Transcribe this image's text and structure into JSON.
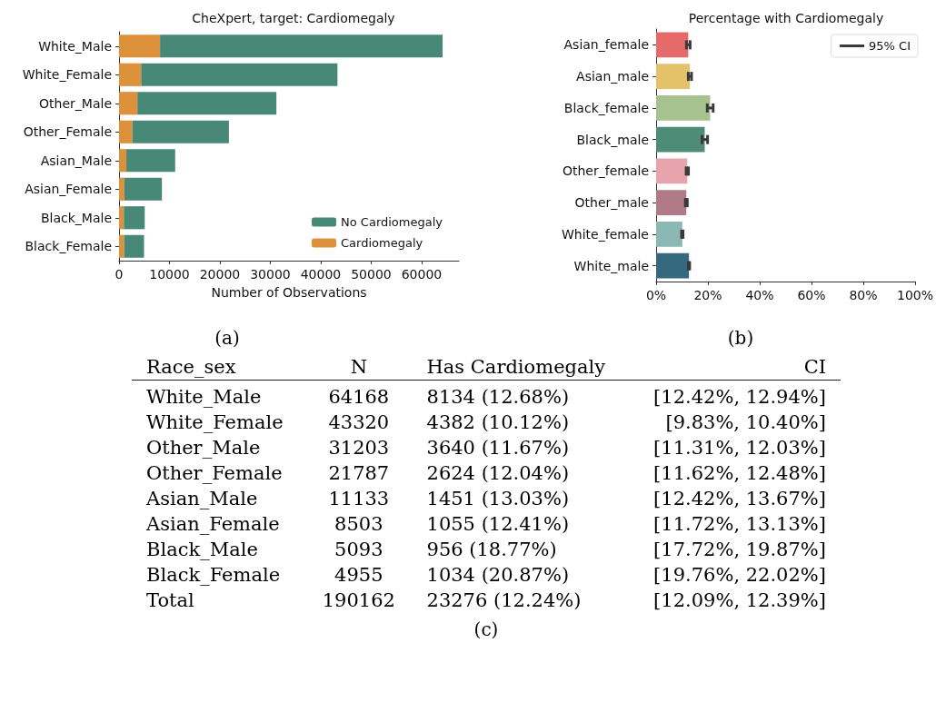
{
  "chart_data": [
    {
      "type": "bar",
      "title": "CheXpert, target: Cardiomegaly",
      "xlabel": "Number of Observations",
      "orientation": "horizontal",
      "stacked": true,
      "legend": "bottom right",
      "grid": false,
      "annotations": [
        "(a)"
      ],
      "categories": [
        "White_Male",
        "White_Female",
        "Other_Male",
        "Other_Female",
        "Asian_Male",
        "Asian_Female",
        "Black_Male",
        "Black_Female"
      ],
      "xlim": [
        0,
        67400
      ],
      "xticks": [
        0,
        10000,
        20000,
        30000,
        40000,
        50000,
        60000
      ],
      "series": [
        {
          "name": "Cardiomegaly",
          "color": "#dd913a",
          "values": [
            8134,
            4382,
            3640,
            2624,
            1451,
            1055,
            956,
            1034
          ]
        },
        {
          "name": "No Cardiomegaly",
          "color": "#478877",
          "values": [
            56034,
            38938,
            27563,
            19163,
            9682,
            7448,
            4137,
            3921
          ]
        }
      ]
    },
    {
      "type": "bar",
      "title": "Percentage with Cardiomegaly",
      "orientation": "horizontal",
      "legend_title": "95% CI",
      "grid": false,
      "annotations": [
        "(b)"
      ],
      "categories": [
        "Asian_female",
        "Asian_male",
        "Black_female",
        "Black_male",
        "Other_female",
        "Other_male",
        "White_female",
        "White_male"
      ],
      "xlim": [
        0,
        100
      ],
      "xticks": [
        {
          "value": 0,
          "label": "0%"
        },
        {
          "value": 20,
          "label": "20%"
        },
        {
          "value": 40,
          "label": "40%"
        },
        {
          "value": 60,
          "label": "60%"
        },
        {
          "value": 80,
          "label": "80%"
        },
        {
          "value": 100,
          "label": "100%"
        }
      ],
      "values": [
        12.41,
        13.03,
        20.87,
        18.77,
        12.04,
        11.67,
        10.12,
        12.68
      ],
      "colors": [
        "#e66a6a",
        "#e4c26a",
        "#a7c18f",
        "#4e8c78",
        "#e7a4ac",
        "#b17a87",
        "#8bb7b5",
        "#366980"
      ],
      "errors": [
        [
          11.72,
          13.13
        ],
        [
          12.42,
          13.67
        ],
        [
          19.76,
          22.02
        ],
        [
          17.72,
          19.87
        ],
        [
          11.62,
          12.48
        ],
        [
          11.31,
          12.03
        ],
        [
          9.83,
          10.4
        ],
        [
          12.42,
          12.94
        ]
      ]
    },
    {
      "type": "other",
      "title": "(c)",
      "annotations": [
        "Race_sex",
        "N",
        "Has Cardiomegaly",
        "CI",
        "White_Male",
        "64168",
        "8134 (12.68%)",
        "[12.42%, 12.94%]",
        "White_Female",
        "43320",
        "4382 (10.12%)",
        "[9.83%, 10.40%]",
        "Other_Male",
        "31203",
        "3640 (11.67%)",
        "[11.31%, 12.03%]",
        "Other_Female",
        "21787",
        "2624 (12.04%)",
        "[11.62%, 12.48%]",
        "Asian_Male",
        "11133",
        "1451 (13.03%)",
        "[12.42%, 13.67%]",
        "Asian_Female",
        "8503",
        "1055 (12.41%)",
        "[11.72%, 13.13%]",
        "Black_Male",
        "5093",
        "956 (18.77%)",
        "[17.72%, 19.87%]",
        "Black_Female",
        "4955",
        "1034 (20.87%)",
        "[19.76%, 22.02%]",
        "Total",
        "190162",
        "23276 (12.24%)",
        "[12.09%, 12.39%]"
      ]
    }
  ]
}
